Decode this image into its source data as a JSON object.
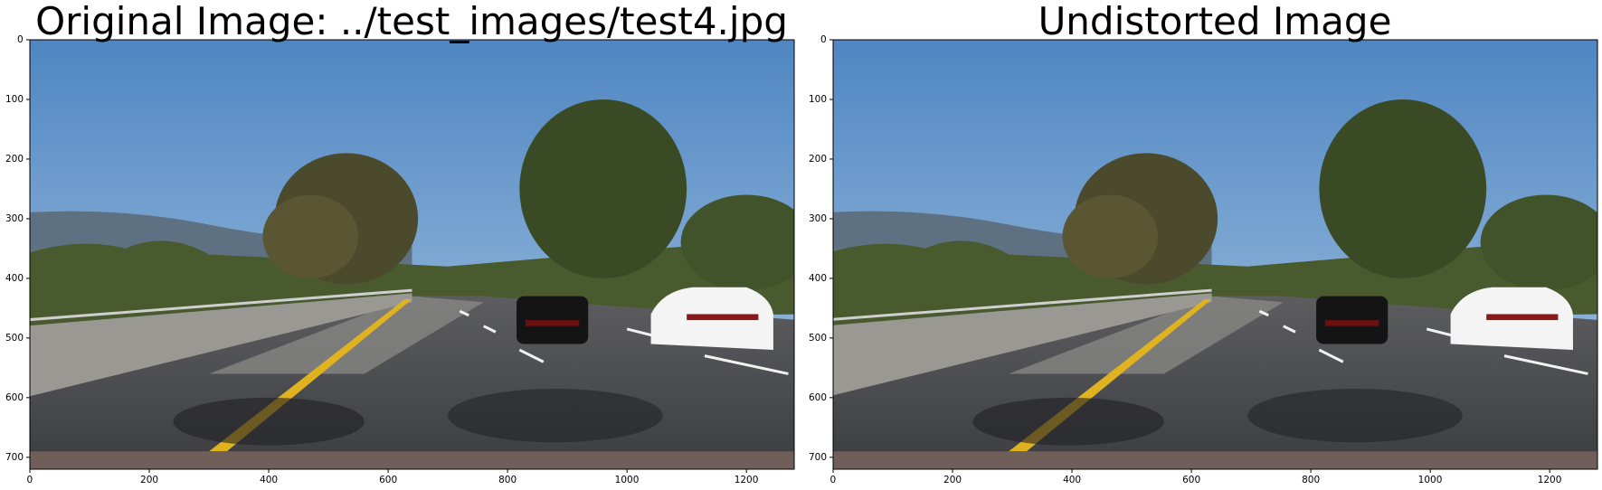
{
  "panels": [
    {
      "title": "Original Image: ../test_images/test4.jpg",
      "x_ticks": [
        "0",
        "200",
        "400",
        "600",
        "800",
        "1000",
        "1200"
      ],
      "y_ticks": [
        "0",
        "100",
        "200",
        "300",
        "400",
        "500",
        "600",
        "700"
      ]
    },
    {
      "title": "Undistorted Image",
      "x_ticks": [
        "0",
        "200",
        "400",
        "600",
        "800",
        "1000",
        "1200"
      ],
      "y_ticks": [
        "0",
        "100",
        "200",
        "300",
        "400",
        "500",
        "600",
        "700"
      ]
    }
  ],
  "colors": {
    "sky_top": "#4f86c2",
    "sky_bottom": "#a9c7e3",
    "trees": "#3f4a2a",
    "road": "#3b3c40",
    "lane_yellow": "#e0b21f",
    "lane_white": "#f2f2f2"
  }
}
